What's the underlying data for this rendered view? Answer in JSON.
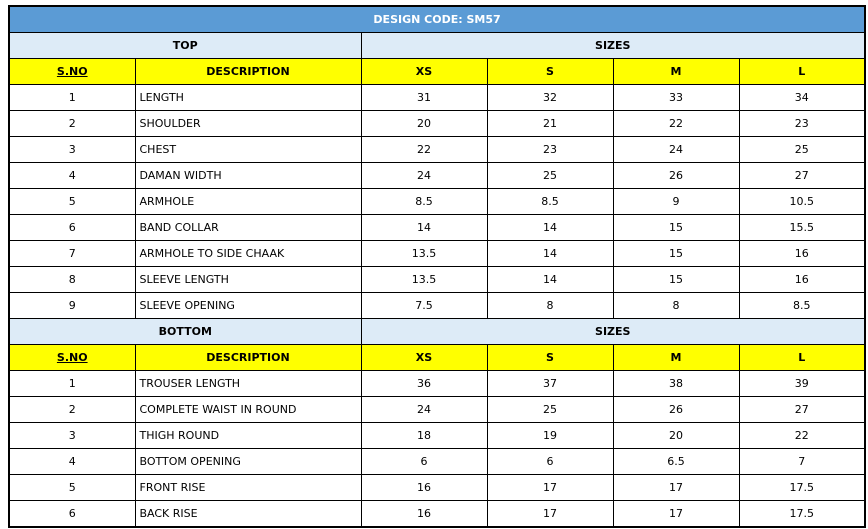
{
  "title": "DESIGN CODE: SM57",
  "sections": [
    {
      "section": "TOP",
      "sizes_label": "SIZES",
      "headers": [
        "S.NO",
        "DESCRIPTION",
        "XS",
        "S",
        "M",
        "L"
      ],
      "rows": [
        [
          1,
          "LENGTH",
          31,
          32,
          33,
          34
        ],
        [
          2,
          "SHOULDER",
          20,
          21,
          22,
          23
        ],
        [
          3,
          "CHEST",
          22,
          23,
          24,
          25
        ],
        [
          4,
          "DAMAN WIDTH",
          24,
          25,
          26,
          27
        ],
        [
          5,
          "ARMHOLE",
          8.5,
          8.5,
          9,
          10.5
        ],
        [
          6,
          "BAND COLLAR",
          14,
          14,
          15,
          15.5
        ],
        [
          7,
          "ARMHOLE TO SIDE CHAAK",
          13.5,
          14,
          15,
          16
        ],
        [
          8,
          "SLEEVE LENGTH",
          13.5,
          14,
          15,
          16
        ],
        [
          9,
          "SLEEVE OPENING",
          7.5,
          8,
          8,
          8.5
        ]
      ]
    },
    {
      "section": "BOTTOM",
      "sizes_label": "SIZES",
      "headers": [
        "S.NO",
        "DESCRIPTION",
        "XS",
        "S",
        "M",
        "L"
      ],
      "rows": [
        [
          1,
          "TROUSER LENGTH",
          36,
          37,
          38,
          39
        ],
        [
          2,
          "COMPLETE WAIST IN ROUND",
          24,
          25,
          26,
          27
        ],
        [
          3,
          "THIGH ROUND",
          18,
          19,
          20,
          22
        ],
        [
          4,
          "BOTTOM OPENING",
          6,
          6,
          6.5,
          7
        ],
        [
          5,
          "FRONT RISE",
          16,
          17,
          17,
          17.5
        ],
        [
          6,
          "BACK RISE",
          16,
          17,
          17,
          17.5
        ]
      ]
    }
  ]
}
